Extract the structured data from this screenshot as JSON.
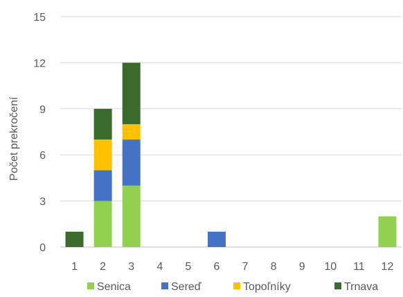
{
  "chart_data": {
    "type": "bar",
    "stacked": true,
    "title": "",
    "xlabel": "",
    "ylabel": "Počet prekročení",
    "categories": [
      "1",
      "2",
      "3",
      "4",
      "5",
      "6",
      "7",
      "8",
      "9",
      "10",
      "11",
      "12"
    ],
    "ylim": [
      0,
      15
    ],
    "yticks": [
      "0",
      "3",
      "6",
      "9",
      "12",
      "15"
    ],
    "grid": true,
    "legend_position": "bottom",
    "series": [
      {
        "name": "Senica",
        "color": "#92d050",
        "values": [
          0,
          3,
          4,
          0,
          0,
          0,
          0,
          0,
          0,
          0,
          0,
          2
        ]
      },
      {
        "name": "Sereď",
        "color": "#4472c4",
        "values": [
          0,
          2,
          3,
          0,
          0,
          1,
          0,
          0,
          0,
          0,
          0,
          0
        ]
      },
      {
        "name": "Topoľníky",
        "color": "#ffc000",
        "values": [
          0,
          2,
          1,
          0,
          0,
          0,
          0,
          0,
          0,
          0,
          0,
          0
        ]
      },
      {
        "name": "Trnava",
        "color": "#3a6b2c",
        "values": [
          1,
          2,
          4,
          0,
          0,
          0,
          0,
          0,
          0,
          0,
          0,
          0
        ]
      }
    ]
  }
}
